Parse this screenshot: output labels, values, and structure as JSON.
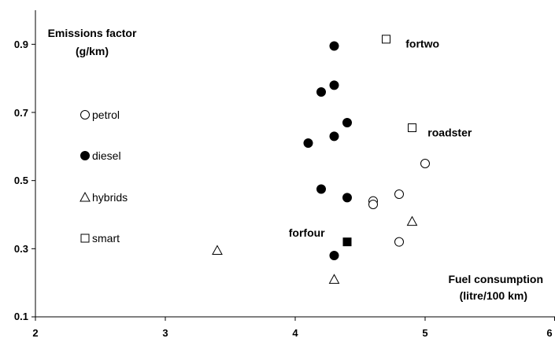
{
  "chart_data": {
    "type": "scatter",
    "title": "",
    "xlim": [
      2,
      6
    ],
    "ylim": [
      0.1,
      1.0
    ],
    "x_ticks": [
      "2",
      "3",
      "4",
      "5",
      "6"
    ],
    "y_ticks": [
      "0.1",
      "0.3",
      "0.5",
      "0.7",
      "0.9"
    ],
    "y_axis_title": [
      "Emissions factor",
      "(g/km)"
    ],
    "x_axis_title": [
      "Fuel consumption",
      "(litre/100 km)"
    ],
    "grid": false,
    "legend": [
      {
        "marker": "circle-open",
        "label": "petrol"
      },
      {
        "marker": "circle-filled",
        "label": "diesel"
      },
      {
        "marker": "triangle-open",
        "label": "hybrids"
      },
      {
        "marker": "square-open",
        "label": "smart"
      }
    ],
    "series": [
      {
        "marker": "circle-open",
        "points": [
          [
            5.0,
            0.55
          ],
          [
            4.8,
            0.46
          ],
          [
            4.6,
            0.44
          ],
          [
            4.6,
            0.43
          ],
          [
            4.8,
            0.32
          ]
        ]
      },
      {
        "marker": "circle-filled",
        "points": [
          [
            4.3,
            0.895
          ],
          [
            4.3,
            0.78
          ],
          [
            4.2,
            0.76
          ],
          [
            4.4,
            0.67
          ],
          [
            4.3,
            0.63
          ],
          [
            4.1,
            0.61
          ],
          [
            4.2,
            0.475
          ],
          [
            4.4,
            0.45
          ],
          [
            4.3,
            0.28
          ]
        ]
      },
      {
        "marker": "triangle-open",
        "points": [
          [
            3.4,
            0.295
          ],
          [
            4.9,
            0.38
          ],
          [
            4.3,
            0.21
          ]
        ]
      },
      {
        "marker": "square-open",
        "points": [
          [
            4.7,
            0.915
          ],
          [
            4.9,
            0.655
          ]
        ]
      },
      {
        "marker": "square-filled",
        "points": [
          [
            4.4,
            0.32
          ]
        ]
      }
    ],
    "annotations": [
      {
        "text": "fortwo",
        "x": 4.85,
        "y": 0.89
      },
      {
        "text": "roadster",
        "x": 5.02,
        "y": 0.63
      },
      {
        "text": "forfour",
        "x": 3.95,
        "y": 0.335
      }
    ]
  }
}
